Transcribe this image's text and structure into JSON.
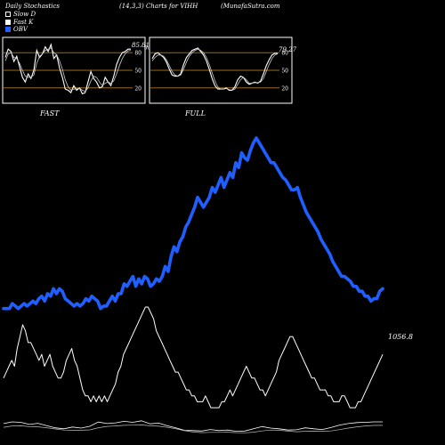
{
  "header": {
    "left": "Daily Stochastics",
    "center": "(14,3,3) Charts for VIHH",
    "right": "(MunafaSutra.com"
  },
  "legend": [
    {
      "label": "Slow  D",
      "color": "#ffffff",
      "hollow": true
    },
    {
      "label": "Fast K",
      "color": "#ffffff",
      "hollow": false
    },
    {
      "label": "OBV",
      "color": "#1f5fff",
      "hollow": false
    }
  ],
  "colors": {
    "obv": "#1f5fff",
    "price": "#ffffff",
    "panel_bg": "#000000",
    "level_line": "#9a6a1a"
  },
  "chart_data": [
    {
      "type": "line",
      "title": "FAST",
      "ylim": [
        0,
        100
      ],
      "y_ticks": [
        20,
        50,
        80
      ],
      "last_value_label": "85.81",
      "extra_tick": "50",
      "series": [
        {
          "name": "Fast K",
          "values": [
            72,
            86,
            82,
            65,
            74,
            56,
            38,
            30,
            44,
            36,
            50,
            84,
            72,
            78,
            90,
            82,
            94,
            70,
            76,
            54,
            38,
            18,
            16,
            12,
            24,
            16,
            20,
            10,
            12,
            30,
            48,
            36,
            30,
            20,
            22,
            38,
            30,
            24,
            40,
            60,
            72,
            80,
            82,
            86,
            86
          ]
        },
        {
          "name": "Slow  D",
          "values": [
            66,
            78,
            80,
            72,
            70,
            62,
            50,
            40,
            38,
            38,
            42,
            62,
            74,
            78,
            84,
            86,
            88,
            80,
            76,
            66,
            52,
            34,
            22,
            16,
            18,
            18,
            20,
            16,
            14,
            20,
            32,
            40,
            38,
            30,
            24,
            28,
            30,
            28,
            32,
            44,
            58,
            70,
            78,
            83,
            84
          ]
        }
      ]
    },
    {
      "type": "line",
      "title": "FULL",
      "ylim": [
        0,
        100
      ],
      "y_ticks": [
        20,
        50,
        80
      ],
      "last_value_label": "79.27",
      "series": [
        {
          "name": "Fast K",
          "values": [
            70,
            78,
            80,
            76,
            72,
            64,
            52,
            42,
            40,
            40,
            44,
            60,
            72,
            78,
            84,
            86,
            88,
            82,
            76,
            66,
            52,
            36,
            24,
            18,
            18,
            18,
            20,
            16,
            16,
            22,
            34,
            40,
            38,
            30,
            26,
            28,
            30,
            28,
            32,
            44,
            58,
            68,
            76,
            79,
            79
          ]
        },
        {
          "name": "Slow  D",
          "values": [
            66,
            72,
            76,
            76,
            74,
            68,
            58,
            48,
            42,
            40,
            42,
            52,
            64,
            74,
            80,
            84,
            86,
            84,
            80,
            72,
            60,
            46,
            32,
            22,
            18,
            18,
            19,
            17,
            16,
            18,
            26,
            34,
            38,
            34,
            28,
            28,
            29,
            29,
            30,
            36,
            48,
            60,
            70,
            76,
            78
          ]
        }
      ]
    },
    {
      "type": "line",
      "title": "",
      "last_value_label": "1056.8",
      "series": [
        {
          "name": "OBV",
          "values": [
            3,
            3,
            3,
            5,
            4,
            3,
            4,
            5,
            4,
            5,
            6,
            5,
            7,
            8,
            6,
            9,
            8,
            11,
            9,
            11,
            10,
            7,
            6,
            5,
            4,
            5,
            4,
            5,
            7,
            6,
            8,
            7,
            6,
            3,
            4,
            4,
            6,
            8,
            6,
            9,
            9,
            13,
            12,
            14,
            16,
            12,
            15,
            13,
            16,
            15,
            12,
            13,
            15,
            14,
            16,
            20,
            18,
            24,
            28,
            26,
            30,
            32,
            36,
            38,
            41,
            44,
            48,
            46,
            44,
            46,
            48,
            52,
            50,
            53,
            56,
            52,
            55,
            58,
            56,
            62,
            60,
            66,
            64,
            63,
            67,
            70,
            72,
            70,
            68,
            66,
            64,
            62,
            62,
            60,
            58,
            56,
            55,
            53,
            51,
            51,
            52,
            48,
            45,
            42,
            40,
            38,
            36,
            34,
            31,
            29,
            27,
            25,
            22,
            20,
            18,
            16,
            16,
            15,
            14,
            12,
            12,
            10,
            10,
            8,
            8,
            6,
            7,
            7,
            10,
            11
          ]
        },
        {
          "name": "Price",
          "values": [
            8,
            9,
            10,
            11,
            10,
            13,
            15,
            17,
            16,
            14,
            14,
            13,
            12,
            11,
            12,
            10,
            11,
            12,
            10,
            9,
            8,
            8,
            9,
            11,
            12,
            13,
            11,
            10,
            8,
            6,
            5,
            5,
            4,
            5,
            4,
            5,
            4,
            5,
            4,
            5,
            6,
            7,
            9,
            10,
            12,
            13,
            14,
            15,
            16,
            17,
            18,
            19,
            20,
            20,
            19,
            18,
            16,
            15,
            14,
            13,
            12,
            11,
            10,
            9,
            9,
            8,
            7,
            6,
            6,
            5,
            5,
            4,
            4,
            4,
            5,
            4,
            3,
            3,
            3,
            3,
            4,
            4,
            5,
            6,
            5,
            6,
            7,
            8,
            9,
            10,
            9,
            8,
            8,
            7,
            6,
            6,
            5,
            6,
            7,
            8,
            9,
            11,
            12,
            13,
            14,
            15,
            15,
            14,
            13,
            12,
            11,
            10,
            9,
            8,
            8,
            7,
            6,
            6,
            6,
            5,
            5,
            4,
            4,
            4,
            5,
            5,
            4,
            3,
            3,
            3,
            4,
            4,
            5,
            6,
            7,
            8,
            9,
            10,
            11,
            12
          ]
        }
      ]
    }
  ]
}
